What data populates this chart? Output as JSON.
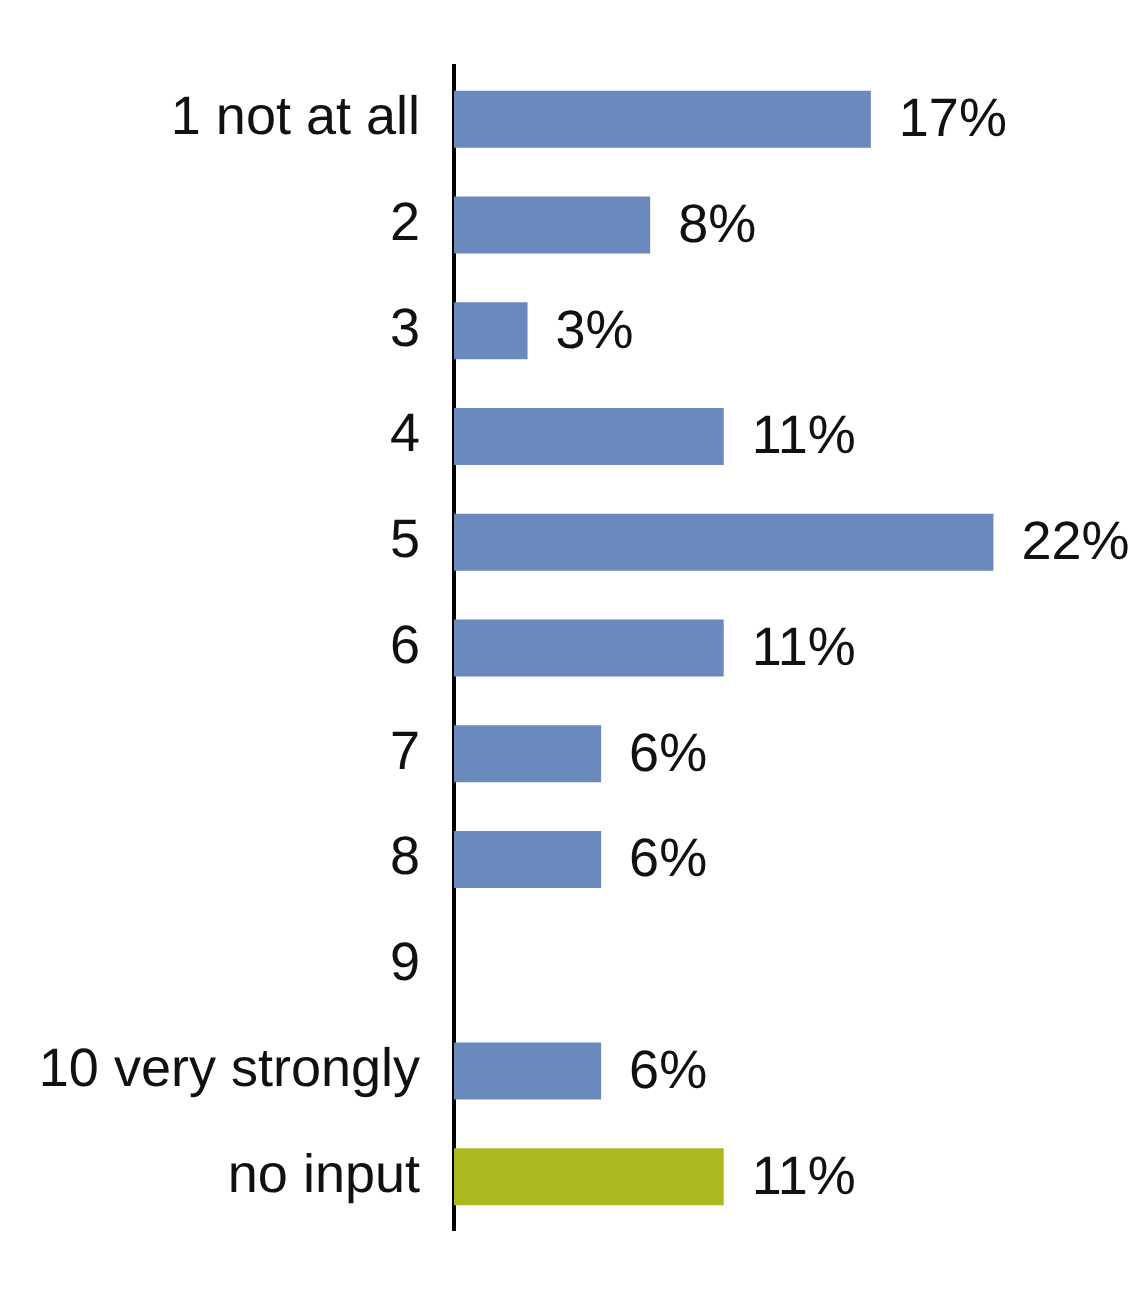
{
  "chart_data": {
    "type": "bar",
    "orientation": "horizontal",
    "tick_labels": "y",
    "categories": [
      "1 not at all",
      "2",
      "3",
      "4",
      "5",
      "6",
      "7",
      "8",
      "9",
      "10 very strongly",
      "no input"
    ],
    "values": [
      17,
      8,
      3,
      11,
      22,
      11,
      6,
      6,
      null,
      6,
      11
    ],
    "value_labels": [
      "17%",
      "8%",
      "3%",
      "11%",
      "22%",
      "11%",
      "6%",
      "6%",
      null,
      "6%",
      "11%"
    ],
    "colors": [
      "#6a89bc",
      "#6a89bc",
      "#6a89bc",
      "#6a89bc",
      "#6a89bc",
      "#6a89bc",
      "#6a89bc",
      "#6a89bc",
      "#6a89bc",
      "#6a89bc",
      "#adb81e"
    ]
  }
}
